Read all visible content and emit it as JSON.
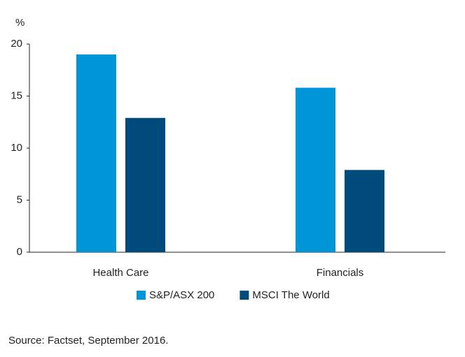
{
  "chart_data": {
    "type": "bar",
    "y_unit": "%",
    "categories": [
      "Health Care",
      "Financials"
    ],
    "series": [
      {
        "name": "S&P/ASX 200",
        "color": "#0095d6",
        "values": [
          19.0,
          15.8
        ]
      },
      {
        "name": "MSCI The World",
        "color": "#004a7c",
        "values": [
          12.9,
          7.9
        ]
      }
    ],
    "ylim": [
      0,
      20
    ],
    "yticks": [
      0,
      5,
      10,
      15,
      20
    ],
    "grid": false,
    "source": "Source: Factset, September 2016."
  }
}
